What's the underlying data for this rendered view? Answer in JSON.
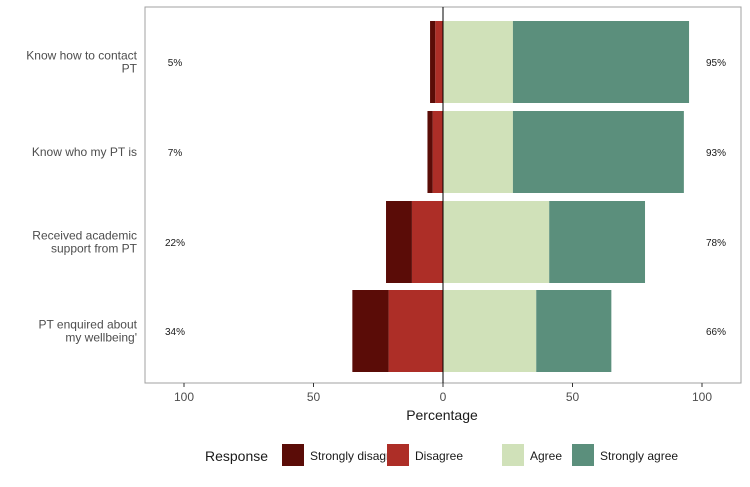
{
  "chart_data": {
    "type": "bar",
    "orientation": "horizontal",
    "stacked": "diverging",
    "title": "",
    "xlabel": "Percentage",
    "ylabel": "",
    "xlim": [
      -100,
      100
    ],
    "x_ticks": [
      {
        "value": -100,
        "label": "100"
      },
      {
        "value": -50,
        "label": "50"
      },
      {
        "value": 0,
        "label": "0"
      },
      {
        "value": 50,
        "label": "50"
      },
      {
        "value": 100,
        "label": "100"
      }
    ],
    "grid": false,
    "categories": [
      "Know how to contact PT",
      "Know who my PT is",
      "Received academic support from PT",
      "PT enquired about my wellbeing'"
    ],
    "category_label_lines": [
      [
        "Know how to contact",
        "PT"
      ],
      [
        "Know who my PT is"
      ],
      [
        "Received academic",
        "support from PT"
      ],
      [
        "PT enquired about",
        "my wellbeing'"
      ]
    ],
    "series": [
      {
        "name": "Strongly disagree",
        "side": "negative",
        "values": [
          2,
          2,
          10,
          14
        ]
      },
      {
        "name": "Disagree",
        "side": "negative",
        "values": [
          3,
          4,
          12,
          21
        ]
      },
      {
        "name": "Agree",
        "side": "positive",
        "values": [
          27,
          27,
          41,
          36
        ]
      },
      {
        "name": "Strongly agree",
        "side": "positive",
        "values": [
          68,
          66,
          37,
          29
        ]
      }
    ],
    "left_totals": [
      "5%",
      "7%",
      "22%",
      "34%"
    ],
    "right_totals": [
      "95%",
      "93%",
      "78%",
      "66%"
    ],
    "legend": {
      "title": "Response",
      "position": "bottom",
      "items": [
        "Strongly disagree",
        "Disagree",
        "Agree",
        "Strongly agree"
      ]
    },
    "colors": {
      "Strongly disagree": "#5a0c07",
      "Disagree": "#ad2e27",
      "Agree": "#d0e1b9",
      "Strongly agree": "#5b8f7c",
      "panel_border": "#a0a0a0",
      "zero_line": "#000000"
    }
  }
}
